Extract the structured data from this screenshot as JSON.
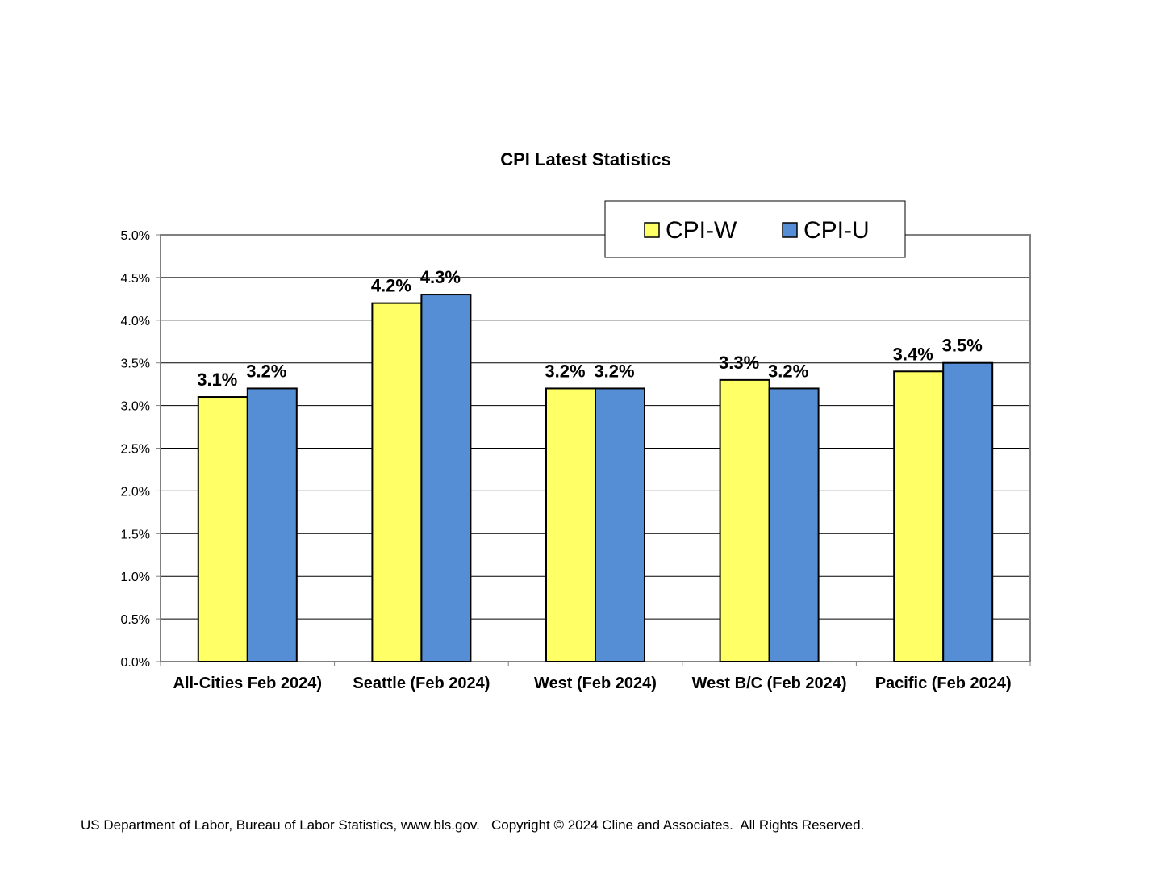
{
  "chart_data": {
    "type": "bar",
    "title": "CPI Latest Statistics",
    "xlabel": "",
    "ylabel": "",
    "categories": [
      "All-Cities Feb 2024)",
      "Seattle (Feb 2024)",
      "West (Feb 2024)",
      "West B/C (Feb 2024)",
      "Pacific (Feb 2024)"
    ],
    "series": [
      {
        "name": "CPI-W",
        "color": "#ffff66",
        "values": [
          3.1,
          4.2,
          3.2,
          3.3,
          3.4
        ],
        "labels": [
          "3.1%",
          "4.2%",
          "3.2%",
          "3.3%",
          "3.4%"
        ]
      },
      {
        "name": "CPI-U",
        "color": "#558ed5",
        "values": [
          3.2,
          4.3,
          3.2,
          3.2,
          3.5
        ],
        "labels": [
          "3.2%",
          "4.3%",
          "3.2%",
          "3.2%",
          "3.5%"
        ]
      }
    ],
    "ylim": [
      0,
      5
    ],
    "yticks": [
      0,
      0.5,
      1,
      1.5,
      2,
      2.5,
      3,
      3.5,
      4,
      4.5,
      5
    ],
    "ytick_labels": [
      "0.0%",
      "0.5%",
      "1.0%",
      "1.5%",
      "2.0%",
      "2.5%",
      "3.0%",
      "3.5%",
      "4.0%",
      "4.5%",
      "5.0%"
    ],
    "grid": true,
    "legend_position": "top-right"
  },
  "footer": {
    "source": "US Department of Labor, Bureau of Labor Statistics, www.bls.gov.   Copyright © 2024 Cline and Associates.  All Rights Reserved."
  }
}
